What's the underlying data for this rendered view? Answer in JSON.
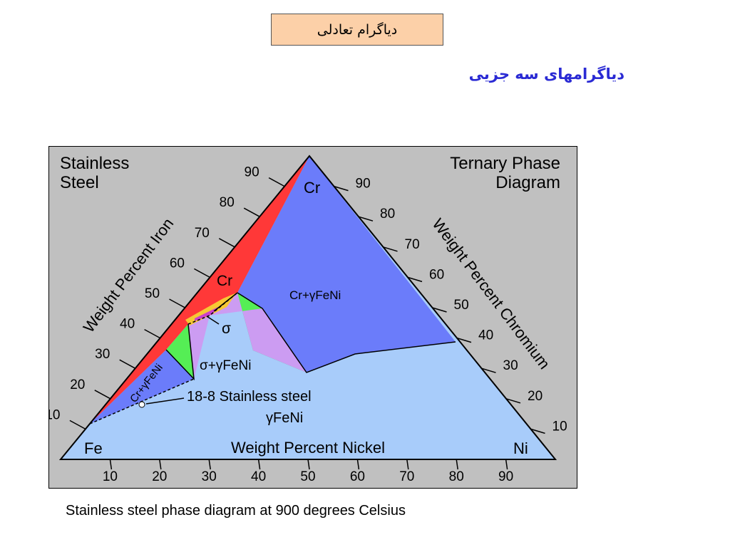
{
  "slide": {
    "title": "دیاگرام تعادلی",
    "subtitle": "دیاگرامهای سه جزیی",
    "caption": "Stainless steel phase diagram at 900 degrees Celsius"
  },
  "diagram": {
    "heading_left_line1": "Stainless",
    "heading_left_line2": "Steel",
    "heading_right_line1": "Ternary Phase",
    "heading_right_line2": "Diagram",
    "axis_left": "Weight Percent Iron",
    "axis_right": "Weight Percent Chromium",
    "axis_bottom": "Weight Percent Nickel",
    "vertex_top": "Cr",
    "vertex_left": "Fe",
    "vertex_right": "Ni",
    "left_ticks": [
      "10",
      "20",
      "30",
      "40",
      "50",
      "60",
      "70",
      "80",
      "90"
    ],
    "right_ticks": [
      "90",
      "80",
      "70",
      "60",
      "50",
      "40",
      "30",
      "20",
      "10"
    ],
    "bottom_ticks": [
      "10",
      "20",
      "30",
      "40",
      "50",
      "60",
      "70",
      "80",
      "90"
    ],
    "phase_cr": "Cr",
    "phase_cr_gfeni": "Cr+γFeNi",
    "phase_sigma": "σ",
    "phase_sigma_gfeni": "σ+γFeNi",
    "phase_cr_gfeni_left": "Cr+γFeNi",
    "phase_gfeni": "γFeNi",
    "annotation": "18-8 Stainless steel",
    "colors": {
      "background": "#c0c0c0",
      "gamma_feni": "#a8ccfa",
      "cr_gfeni": "#6b7cfa",
      "cr": "#ff3838",
      "green": "#55ee55",
      "sigma_gfeni": "#cc9cf2",
      "yellow": "#f6c834",
      "sigma": "#cc40cc"
    }
  }
}
